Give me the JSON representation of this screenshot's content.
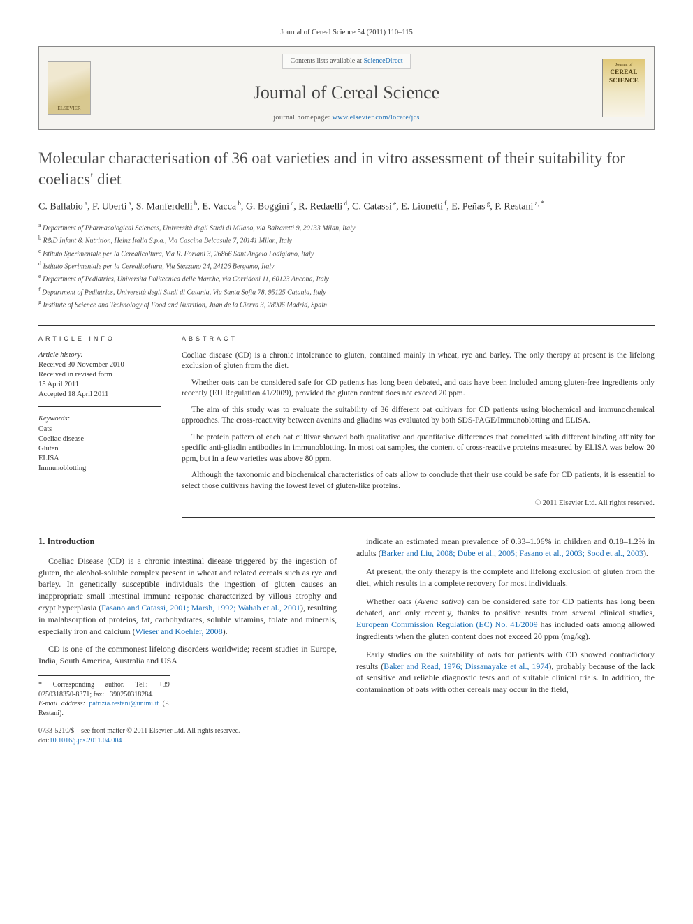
{
  "citation": "Journal of Cereal Science 54 (2011) 110–115",
  "header": {
    "contents_prefix": "Contents lists available at ",
    "contents_link": "ScienceDirect",
    "journal_name": "Journal of Cereal Science",
    "homepage_prefix": "journal homepage: ",
    "homepage_url": "www.elsevier.com/locate/jcs",
    "publisher_logo_text": "ELSEVIER",
    "cover_j_of": "Journal of",
    "cover_title1": "CEREAL",
    "cover_title2": "SCIENCE"
  },
  "article": {
    "title": "Molecular characterisation of 36 oat varieties and in vitro assessment of their suitability for coeliacs' diet",
    "authors_html": "C. Ballabio<sup> a</sup>, F. Uberti<sup> a</sup>, S. Manferdelli<sup> b</sup>, E. Vacca<sup> b</sup>, G. Boggini<sup> c</sup>, R. Redaelli<sup> d</sup>, C. Catassi<sup> e</sup>, E. Lionetti<sup> f</sup>, E. Peñas<sup> g</sup>, P. Restani<sup> a, *</sup>",
    "affiliations": [
      "Department of Pharmacological Sciences, Università degli Studi di Milano, via Balzaretti 9, 20133 Milan, Italy",
      "R&D Infant & Nutrition, Heinz Italia S.p.a., Via Cascina Belcasule 7, 20141 Milan, Italy",
      "Istituto Sperimentale per la Cerealicoltura, Via R. Forlani 3, 26866 Sant'Angelo Lodigiano, Italy",
      "Istituto Sperimentale per la Cerealicoltura, Via Stezzano 24, 24126 Bergamo, Italy",
      "Department of Pediatrics, Università Politecnica delle Marche, via Corridoni 11, 60123 Ancona, Italy",
      "Department of Pediatrics, Università degli Studi di Catania, Via Santa Sofia 78, 95125 Catania, Italy",
      "Institute of Science and Technology of Food and Nutrition, Juan de la Cierva 3, 28006 Madrid, Spain"
    ],
    "aff_markers": [
      "a",
      "b",
      "c",
      "d",
      "e",
      "f",
      "g"
    ]
  },
  "info": {
    "heading": "ARTICLE INFO",
    "hist_label": "Article history:",
    "received": "Received 30 November 2010",
    "revised1": "Received in revised form",
    "revised2": "15 April 2011",
    "accepted": "Accepted 18 April 2011",
    "kw_label": "Keywords:",
    "keywords": [
      "Oats",
      "Coeliac disease",
      "Gluten",
      "ELISA",
      "Immunoblotting"
    ]
  },
  "abstract": {
    "heading": "ABSTRACT",
    "p1": "Coeliac disease (CD) is a chronic intolerance to gluten, contained mainly in wheat, rye and barley. The only therapy at present is the lifelong exclusion of gluten from the diet.",
    "p2": "Whether oats can be considered safe for CD patients has long been debated, and oats have been included among gluten-free ingredients only recently (EU Regulation 41/2009), provided the gluten content does not exceed 20 ppm.",
    "p3": "The aim of this study was to evaluate the suitability of 36 different oat cultivars for CD patients using biochemical and immunochemical approaches. The cross-reactivity between avenins and gliadins was evaluated by both SDS-PAGE/Immunoblotting and ELISA.",
    "p4": "The protein pattern of each oat cultivar showed both qualitative and quantitative differences that correlated with different binding affinity for specific anti-gliadin antibodies in immunoblotting. In most oat samples, the content of cross-reactive proteins measured by ELISA was below 20 ppm, but in a few varieties was above 80 ppm.",
    "p5": "Although the taxonomic and biochemical characteristics of oats allow to conclude that their use could be safe for CD patients, it is essential to select those cultivars having the lowest level of gluten-like proteins.",
    "copyright": "© 2011 Elsevier Ltd. All rights reserved."
  },
  "intro": {
    "heading": "1. Introduction",
    "p1a": "Coeliac Disease (CD) is a chronic intestinal disease triggered by the ingestion of gluten, the alcohol-soluble complex present in wheat and related cereals such as rye and barley. In genetically susceptible individuals the ingestion of gluten causes an inappropriate small intestinal immune response characterized by villous atrophy and crypt hyperplasia (",
    "p1_ref1": "Fasano and Catassi, 2001; Marsh, 1992; Wahab et al., 2001",
    "p1b": "), resulting in malabsorption of proteins, fat, carbohydrates, soluble vitamins, folate and minerals, especially iron and calcium (",
    "p1_ref2": "Wieser and Koehler, 2008",
    "p1c": ").",
    "p2": "CD is one of the commonest lifelong disorders worldwide; recent studies in Europe, India, South America, Australia and USA",
    "p3a": "indicate an estimated mean prevalence of 0.33–1.06% in children and 0.18–1.2% in adults (",
    "p3_ref": "Barker and Liu, 2008; Dube et al., 2005; Fasano et al., 2003; Sood et al., 2003",
    "p3b": ").",
    "p4": "At present, the only therapy is the complete and lifelong exclusion of gluten from the diet, which results in a complete recovery for most individuals.",
    "p5a": "Whether oats (",
    "p5_it": "Avena sativa",
    "p5b": ") can be considered safe for CD patients has long been debated, and only recently, thanks to positive results from several clinical studies, ",
    "p5_ref": "European Commission Regulation (EC) No. 41/2009",
    "p5c": " has included oats among allowed ingredients when the gluten content does not exceed 20 ppm (mg/kg).",
    "p6a": "Early studies on the suitability of oats for patients with CD showed contradictory results (",
    "p6_ref": "Baker and Read, 1976; Dissanayake et al., 1974",
    "p6b": "), probably because of the lack of sensitive and reliable diagnostic tests and of suitable clinical trials. In addition, the contamination of oats with other cereals may occur in the field,"
  },
  "footnotes": {
    "corresponding": "* Corresponding author. Tel.: +39 0250318350-8371; fax: +390250318284.",
    "email_label": "E-mail address:",
    "email": "patrizia.restani@unimi.it",
    "email_who": "(P. Restani)."
  },
  "footer": {
    "line1": "0733-5210/$ – see front matter © 2011 Elsevier Ltd. All rights reserved.",
    "doi_label": "doi:",
    "doi": "10.1016/j.jcs.2011.04.004"
  },
  "colors": {
    "link": "#1a6db5",
    "text": "#333333",
    "border": "#888888"
  }
}
